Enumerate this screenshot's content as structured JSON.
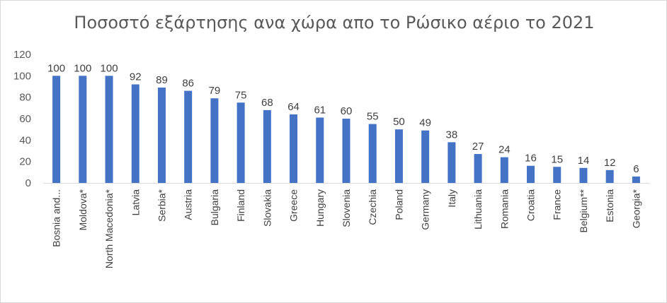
{
  "chart_data": {
    "type": "bar",
    "title": "Ποσοστό εξάρτησης ανα χώρα απο το Ρώσικο αέριο το 2021",
    "categories": [
      "Bosnia and...",
      "Moldova*",
      "North Macedonia*",
      "Latvia",
      "Serbia*",
      "Austria",
      "Bulgaria",
      "Finland",
      "Slovakia",
      "Greece",
      "Hungary",
      "Slovenia",
      "Czechia",
      "Poland",
      "Germany",
      "Italy",
      "Lithuania",
      "Romania",
      "Croatia",
      "France",
      "Belgium**",
      "Estonia",
      "Georgia*"
    ],
    "values": [
      100,
      100,
      100,
      92,
      89,
      86,
      79,
      75,
      68,
      64,
      61,
      60,
      55,
      50,
      49,
      38,
      27,
      24,
      16,
      15,
      14,
      12,
      6
    ],
    "ylim": [
      0,
      120
    ],
    "yticks": [
      0,
      20,
      40,
      60,
      80,
      100,
      120
    ],
    "xlabel": "",
    "ylabel": "",
    "grid": false,
    "bar_color": "#4472c4",
    "data_labels": true
  }
}
